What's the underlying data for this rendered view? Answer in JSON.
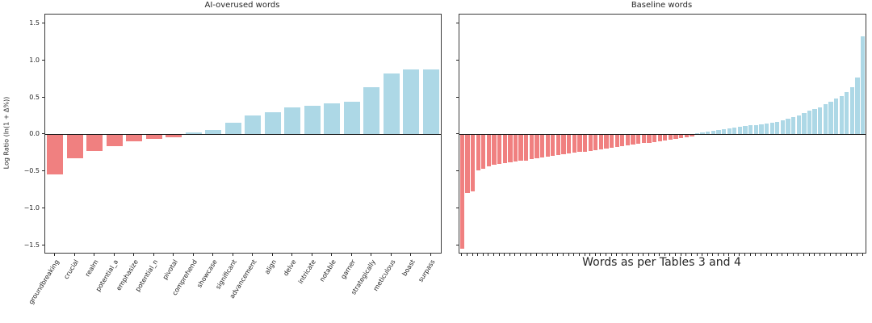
{
  "colors": {
    "positive_bar": "#ADD8E6",
    "negative_bar": "#F08080",
    "axis_line": "#3c3c3c",
    "text": "#262626",
    "background": "#ffffff"
  },
  "chart_data": [
    {
      "type": "bar",
      "title": "AI-overused words",
      "xlabel": "",
      "ylabel": "Log Ratio (ln(1 + Δ%))",
      "ylim": [
        -1.6,
        1.62
      ],
      "ytick_values": [
        1.5,
        1.0,
        0.5,
        0.0,
        -0.5,
        -1.0,
        -1.5
      ],
      "yticks_labeled": true,
      "grid": false,
      "legend": false,
      "categories": [
        "groundbreaking",
        "crucial",
        "realm",
        "potential_a",
        "emphasize",
        "potential_n",
        "pivotal",
        "comprehend",
        "showcase",
        "significant",
        "advancement",
        "align",
        "delve",
        "intricate",
        "notable",
        "garner",
        "strategically",
        "meticulous",
        "boast",
        "surpass"
      ],
      "values": [
        -0.53,
        -0.31,
        -0.21,
        -0.15,
        -0.08,
        -0.05,
        -0.03,
        0.03,
        0.06,
        0.16,
        0.26,
        0.3,
        0.37,
        0.39,
        0.42,
        0.44,
        0.64,
        0.82,
        0.88,
        0.88
      ]
    },
    {
      "type": "bar",
      "title": "Baseline words",
      "xlabel": "Words as per Tables 3 and 4",
      "ylabel": "",
      "ylim": [
        -1.6,
        1.62
      ],
      "ytick_values": [
        1.5,
        1.0,
        0.5,
        0.0,
        -0.5,
        -1.0,
        -1.5
      ],
      "yticks_labeled": false,
      "grid": false,
      "legend": false,
      "categories_unlabeled": true,
      "n_bars": 76,
      "values": [
        -1.54,
        -0.78,
        -0.76,
        -0.48,
        -0.45,
        -0.42,
        -0.4,
        -0.39,
        -0.38,
        -0.37,
        -0.36,
        -0.35,
        -0.34,
        -0.32,
        -0.31,
        -0.3,
        -0.29,
        -0.28,
        -0.27,
        -0.26,
        -0.25,
        -0.24,
        -0.23,
        -0.22,
        -0.21,
        -0.2,
        -0.19,
        -0.18,
        -0.17,
        -0.16,
        -0.15,
        -0.14,
        -0.13,
        -0.12,
        -0.11,
        -0.1,
        -0.09,
        -0.08,
        -0.07,
        -0.06,
        -0.05,
        -0.04,
        -0.03,
        -0.02,
        0.02,
        0.03,
        0.04,
        0.05,
        0.06,
        0.07,
        0.08,
        0.09,
        0.1,
        0.11,
        0.12,
        0.13,
        0.14,
        0.15,
        0.16,
        0.17,
        0.19,
        0.21,
        0.23,
        0.26,
        0.29,
        0.32,
        0.34,
        0.37,
        0.41,
        0.44,
        0.48,
        0.52,
        0.57,
        0.64,
        0.77,
        1.32
      ]
    }
  ]
}
